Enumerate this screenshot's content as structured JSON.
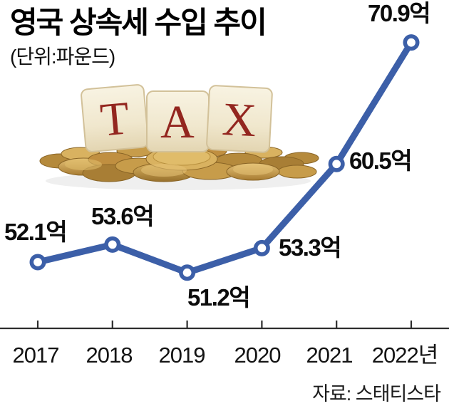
{
  "header": {
    "title": "영국 상속세 수입 추이",
    "unit_label": "(단위:파운드)"
  },
  "chart_data": {
    "type": "line",
    "title": "영국 상속세 수입 추이",
    "unit_label": "(단위:파운드)",
    "categories": [
      "2017",
      "2018",
      "2019",
      "2020",
      "2021",
      "2022년"
    ],
    "values": [
      52.1,
      53.6,
      51.2,
      53.3,
      60.5,
      70.9
    ],
    "point_labels": [
      "52.1억",
      "53.6억",
      "51.2억",
      "53.3억",
      "60.5억",
      "70.9억"
    ],
    "ylim": [
      46,
      75
    ],
    "grid": false,
    "legend": false,
    "series_color": "#3c5fa8",
    "axis_color": "#2d2d2d",
    "source": "자료: 스태티스타"
  },
  "illustration": {
    "name": "tax-blocks-on-gold-coins",
    "letters": [
      "T",
      "A",
      "X"
    ],
    "letter_color": "#93261f",
    "block_color": "#f3ecd8",
    "coin_color": "#c79c4a"
  }
}
